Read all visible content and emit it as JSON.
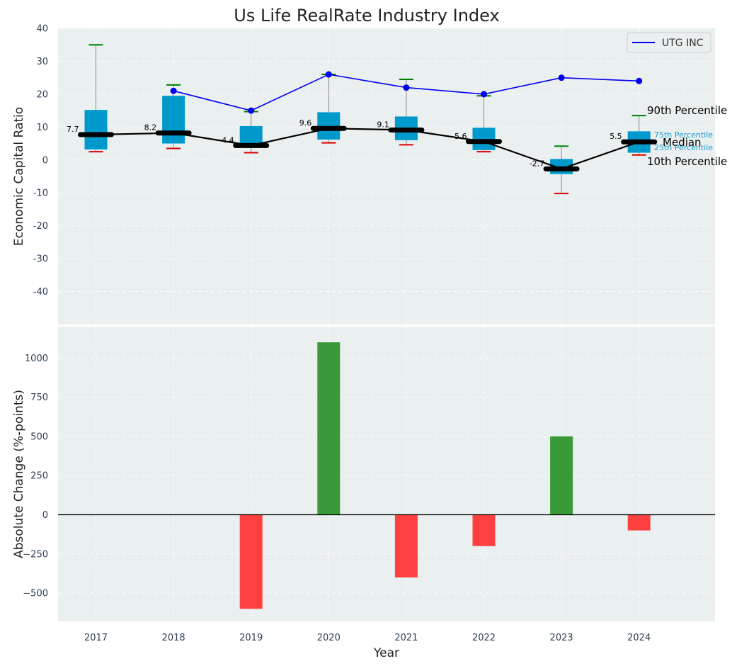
{
  "chart_data": [
    {
      "type": "box",
      "title": "Us Life RealRate Industry Index",
      "xlabel": "",
      "ylabel": "Economic Capital Ratio",
      "ylim": [
        -50,
        40
      ],
      "yticks": [
        -40,
        -30,
        -20,
        -10,
        0,
        10,
        20,
        30,
        40
      ],
      "categories": [
        "2017",
        "2018",
        "2019",
        "2020",
        "2021",
        "2022",
        "2023",
        "2024"
      ],
      "p10": [
        2.5,
        3.5,
        2.2,
        5.2,
        4.6,
        2.5,
        -10.2,
        1.5
      ],
      "p25": [
        3.2,
        5.0,
        4.0,
        6.2,
        6.0,
        3.0,
        -4.3,
        2.2
      ],
      "median": [
        7.7,
        8.2,
        4.4,
        9.6,
        9.1,
        5.6,
        -2.7,
        5.5
      ],
      "p75": [
        15.2,
        19.5,
        10.3,
        14.5,
        13.2,
        9.8,
        0.3,
        8.7
      ],
      "p90": [
        35.0,
        22.8,
        14.7,
        26.0,
        24.5,
        19.5,
        4.2,
        13.5
      ],
      "median_labels": [
        "7.7",
        "8.2",
        "4.4",
        "9.6",
        "9.1",
        "5.6",
        "-2.7",
        "5.5"
      ],
      "series": [
        {
          "name": "UTG INC",
          "x": [
            "2018",
            "2019",
            "2020",
            "2021",
            "2022",
            "2023",
            "2024"
          ],
          "values": [
            21.0,
            15.0,
            26.0,
            22.0,
            20.0,
            25.0,
            24.0
          ],
          "color": "#0000ee"
        }
      ],
      "legend": {
        "position": "top-right",
        "entries": [
          "UTG INC"
        ]
      },
      "annotations": {
        "p90": "90th Percentile",
        "p75": "75th Percentile",
        "median": "Median",
        "p25": "25th Percentile",
        "p10": "10th Percentile"
      },
      "colors": {
        "box": "#0099cc",
        "whisker_top": "#008000",
        "whisker_bottom": "#dd0000",
        "median": "#000000",
        "background": "#eaeff0"
      }
    },
    {
      "type": "bar",
      "title": "",
      "xlabel": "Year",
      "ylabel": "Absolute Change (%-points)",
      "ylim": [
        -680,
        1200
      ],
      "yticks": [
        -500,
        -250,
        0,
        250,
        500,
        750,
        1000
      ],
      "ytick_labels": [
        "−500",
        "−250",
        "0",
        "250",
        "500",
        "750",
        "1000"
      ],
      "categories": [
        "2017",
        "2018",
        "2019",
        "2020",
        "2021",
        "2022",
        "2023",
        "2024"
      ],
      "values": [
        0,
        0,
        -600,
        1100,
        -400,
        -200,
        500,
        -100
      ],
      "colors": {
        "positive": "#3a9a3a",
        "negative": "#ff4040",
        "background": "#eaeff0"
      }
    }
  ]
}
